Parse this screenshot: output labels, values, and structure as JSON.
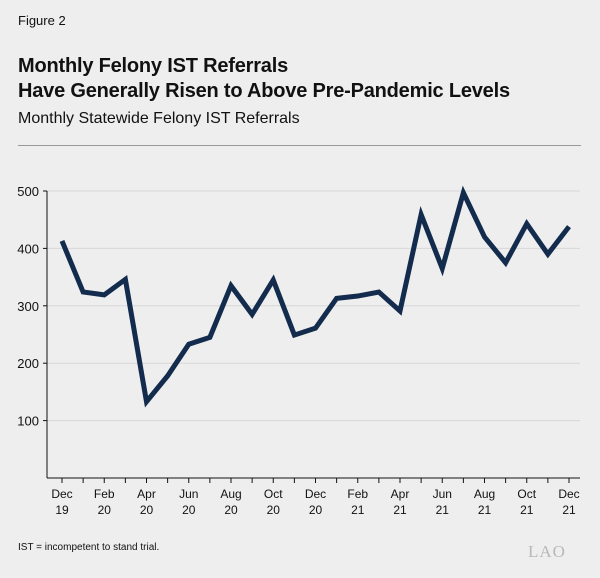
{
  "figure_label": "Figure 2",
  "title_lines": [
    "Monthly Felony IST Referrals",
    "Have Generally Risen to Above Pre-Pandemic Levels"
  ],
  "subtitle": "Monthly Statewide Felony IST Referrals",
  "footnote": "IST = incompetent to stand trial.",
  "logo_text": "LAO",
  "chart_data": {
    "type": "line",
    "title": "Monthly Felony IST Referrals Have Generally Risen to Above Pre-Pandemic Levels",
    "subtitle": "Monthly Statewide Felony IST Referrals",
    "x": [
      "Dec 19",
      "Jan 20",
      "Feb 20",
      "Mar 20",
      "Apr 20",
      "May 20",
      "Jun 20",
      "Jul 20",
      "Aug 20",
      "Sep 20",
      "Oct 20",
      "Nov 20",
      "Dec 20",
      "Jan 21",
      "Feb 21",
      "Mar 21",
      "Apr 21",
      "May 21",
      "Jun 21",
      "Jul 21",
      "Aug 21",
      "Sep 21",
      "Oct 21",
      "Nov 21",
      "Dec 21"
    ],
    "values": [
      413,
      324,
      319,
      346,
      133,
      178,
      233,
      245,
      335,
      285,
      345,
      249,
      261,
      313,
      317,
      324,
      291,
      459,
      365,
      497,
      420,
      375,
      443,
      390,
      438
    ],
    "x_tick_labels": [
      [
        "Dec",
        "19"
      ],
      [
        "Feb",
        "20"
      ],
      [
        "Apr",
        "20"
      ],
      [
        "Jun",
        "20"
      ],
      [
        "Aug",
        "20"
      ],
      [
        "Oct",
        "20"
      ],
      [
        "Dec",
        "20"
      ],
      [
        "Feb",
        "21"
      ],
      [
        "Apr",
        "21"
      ],
      [
        "Jun",
        "21"
      ],
      [
        "Aug",
        "21"
      ],
      [
        "Oct",
        "21"
      ],
      [
        "Dec",
        "21"
      ]
    ],
    "y_ticks": [
      100,
      200,
      300,
      400,
      500
    ],
    "ylim": [
      0,
      500
    ],
    "grid": true,
    "line_color": "#132b4c",
    "xlabel": "",
    "ylabel": ""
  }
}
